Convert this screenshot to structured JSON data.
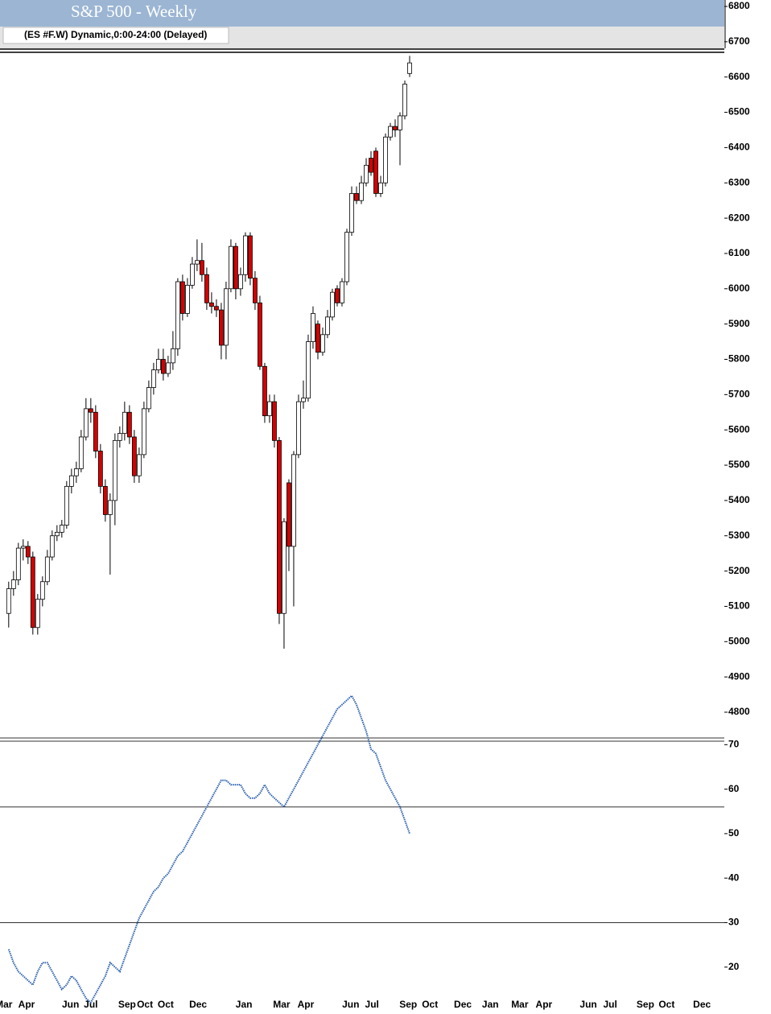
{
  "chart_data": {
    "type": "candlestick",
    "title": "S&P 500 - Weekly",
    "subtitle": "(ES #F.W) Dynamic,0:00-24:00 (Delayed)",
    "xlim": [
      -1.8,
      157.8
    ],
    "xticks": [
      {
        "value": -1,
        "label": "Mar"
      },
      {
        "value": 3.7,
        "label": "Apr"
      },
      {
        "value": 12.8,
        "label": "Jun"
      },
      {
        "value": 17,
        "label": "Jul"
      },
      {
        "value": 24.5,
        "label": "Sep"
      },
      {
        "value": 28.2,
        "label": "Oct"
      },
      {
        "value": 32.5,
        "label": "Oct"
      },
      {
        "value": 39.2,
        "label": "Dec"
      },
      {
        "value": 48.7,
        "label": "Jan"
      },
      {
        "value": 56.5,
        "label": "Mar"
      },
      {
        "value": 61.5,
        "label": "Apr"
      },
      {
        "value": 70.8,
        "label": "Jun"
      },
      {
        "value": 75.2,
        "label": "Jul"
      },
      {
        "value": 82.7,
        "label": "Sep"
      },
      {
        "value": 87.2,
        "label": "Oct"
      },
      {
        "value": 94,
        "label": "Dec"
      },
      {
        "value": 99.7,
        "label": "Jan"
      },
      {
        "value": 105.8,
        "label": "Mar"
      },
      {
        "value": 110.8,
        "label": "Apr"
      },
      {
        "value": 120,
        "label": "Jun"
      },
      {
        "value": 124.5,
        "label": "Jul"
      },
      {
        "value": 131.8,
        "label": "Sep"
      },
      {
        "value": 136.2,
        "label": "Oct"
      },
      {
        "value": 143.5,
        "label": "Dec"
      }
    ],
    "ylim": [
      4800,
      6800
    ],
    "yticks": [
      4800,
      4900,
      5000,
      5100,
      5200,
      5300,
      5400,
      5500,
      5600,
      5700,
      5800,
      5900,
      6000,
      6100,
      6200,
      6300,
      6400,
      6500,
      6600,
      6700,
      6800
    ],
    "up_color": "#ffffff",
    "down_color": "#d40000",
    "open": [
      5080,
      5150,
      5175,
      5265,
      5270,
      5240,
      5040,
      5120,
      5170,
      5240,
      5300,
      5310,
      5330,
      5440,
      5470,
      5490,
      5580,
      5660,
      5650,
      5540,
      5440,
      5360,
      5400,
      5570,
      5590,
      5650,
      5580,
      5470,
      5530,
      5660,
      5720,
      5770,
      5800,
      5760,
      5790,
      5830,
      6020,
      5930,
      6010,
      6070,
      6080,
      6040,
      5960,
      5950,
      5940,
      5840,
      6000,
      6120,
      6000,
      6040,
      6150,
      6030,
      5960,
      5780,
      5640,
      5680,
      5570,
      5080,
      5450,
      5270,
      5530,
      5680,
      5690,
      5850,
      5900,
      5820,
      5870,
      5920,
      6000,
      5960,
      6020,
      6160,
      6270,
      6250,
      6300,
      6370,
      6390,
      6270,
      6300,
      6430,
      6460,
      6450,
      6490,
      6610
    ],
    "high": [
      5170,
      5200,
      5280,
      5290,
      5285,
      5255,
      5135,
      5185,
      5260,
      5315,
      5330,
      5345,
      5455,
      5490,
      5510,
      5600,
      5690,
      5690,
      5670,
      5560,
      5460,
      5420,
      5590,
      5610,
      5680,
      5670,
      5600,
      5550,
      5680,
      5740,
      5790,
      5830,
      5830,
      5810,
      5880,
      6030,
      6040,
      6030,
      6090,
      6140,
      6130,
      6060,
      5990,
      5970,
      5960,
      6020,
      6140,
      6130,
      6060,
      6160,
      6160,
      6050,
      5980,
      5790,
      5700,
      5700,
      5580,
      5350,
      5460,
      5540,
      5700,
      5740,
      5870,
      5950,
      5910,
      5890,
      5940,
      6000,
      6010,
      6030,
      6170,
      6290,
      6290,
      6320,
      6370,
      6390,
      6400,
      6320,
      6440,
      6470,
      6480,
      6500,
      6590,
      6660
    ],
    "low": [
      5040,
      5130,
      5160,
      5230,
      5220,
      5020,
      5020,
      5100,
      5160,
      5230,
      5285,
      5295,
      5320,
      5420,
      5450,
      5480,
      5570,
      5620,
      5520,
      5420,
      5340,
      5190,
      5330,
      5550,
      5570,
      5560,
      5450,
      5450,
      5520,
      5650,
      5700,
      5760,
      5740,
      5750,
      5770,
      5810,
      5910,
      5920,
      6000,
      6050,
      6020,
      5940,
      5930,
      5920,
      5800,
      5800,
      5990,
      5970,
      5980,
      6020,
      6010,
      5940,
      5770,
      5620,
      5620,
      5550,
      5050,
      4980,
      5200,
      5100,
      5520,
      5660,
      5680,
      5830,
      5800,
      5810,
      5860,
      5910,
      5950,
      5950,
      6010,
      6150,
      6240,
      6240,
      6290,
      6320,
      6260,
      6260,
      6290,
      6420,
      6430,
      6350,
      6480,
      6600
    ],
    "close": [
      5150,
      5175,
      5265,
      5270,
      5240,
      5040,
      5120,
      5170,
      5240,
      5300,
      5310,
      5330,
      5440,
      5470,
      5490,
      5580,
      5660,
      5650,
      5540,
      5440,
      5360,
      5400,
      5570,
      5590,
      5650,
      5580,
      5470,
      5530,
      5660,
      5720,
      5770,
      5800,
      5760,
      5790,
      5830,
      6020,
      5930,
      6010,
      6070,
      6080,
      6040,
      5960,
      5950,
      5940,
      5840,
      6000,
      6120,
      6000,
      6040,
      6150,
      6030,
      5960,
      5780,
      5640,
      5680,
      5570,
      5080,
      5340,
      5270,
      5530,
      5680,
      5690,
      5850,
      5930,
      5820,
      5870,
      5920,
      5990,
      5960,
      6020,
      6160,
      6270,
      6250,
      6300,
      6350,
      6330,
      6270,
      6300,
      6430,
      6460,
      6450,
      6490,
      6580,
      6640
    ],
    "indicator": {
      "color": "#2a5fb0",
      "values": [
        24,
        21,
        19,
        18,
        17,
        16,
        19,
        21,
        21,
        19,
        17,
        15,
        16,
        18,
        17,
        15,
        13,
        12,
        14,
        16,
        18,
        21,
        20,
        19,
        22,
        25,
        28,
        31,
        33,
        35,
        37,
        38,
        40,
        41,
        43,
        45,
        46,
        48,
        50,
        52,
        54,
        56,
        58,
        60,
        62,
        62,
        61,
        61,
        61,
        59,
        58,
        58,
        59,
        61,
        59,
        58,
        57,
        56,
        58,
        60,
        62,
        64,
        66,
        68,
        70,
        72,
        74,
        76,
        78,
        79,
        80,
        81,
        79,
        76,
        73,
        69,
        68,
        65,
        62,
        60,
        58,
        56,
        53,
        50
      ],
      "y2lim": [
        10,
        82
      ],
      "y2ticks": [
        20,
        30,
        40,
        50,
        60,
        70
      ],
      "levels": [
        56,
        30
      ]
    }
  }
}
